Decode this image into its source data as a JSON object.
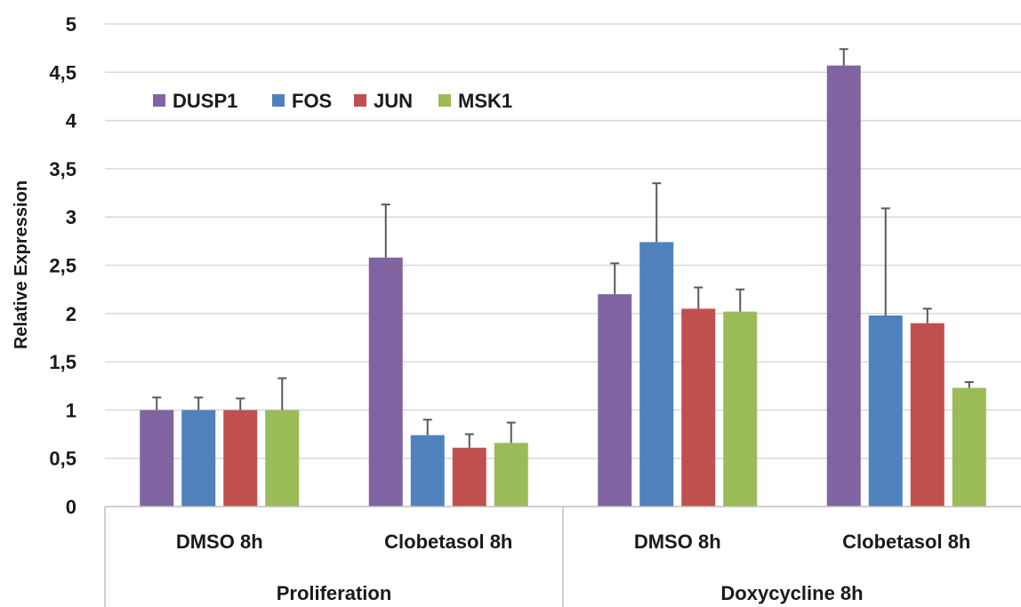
{
  "chart_data": {
    "type": "bar",
    "ylabel": "Relative Expression",
    "ylim": [
      0,
      5
    ],
    "yticks": [
      "0",
      "0,5",
      "1",
      "1,5",
      "2",
      "2,5",
      "3",
      "3,5",
      "4",
      "4,5",
      "5"
    ],
    "grid": true,
    "legend_position": "top-left",
    "groups": [
      "Proliferation",
      "Doxycycline 8h"
    ],
    "categories": [
      "DMSO 8h",
      "Clobetasol 8h",
      "DMSO 8h",
      "Clobetasol 8h"
    ],
    "series": [
      {
        "name": "DUSP1",
        "color": "#8064a2",
        "values": [
          1.0,
          2.58,
          2.2,
          4.57
        ],
        "error": [
          0.13,
          0.55,
          0.32,
          0.17
        ]
      },
      {
        "name": "FOS",
        "color": "#4f81bd",
        "values": [
          1.0,
          0.74,
          2.74,
          1.98
        ],
        "error": [
          0.13,
          0.16,
          0.61,
          1.11
        ]
      },
      {
        "name": "JUN",
        "color": "#c0504d",
        "values": [
          1.0,
          0.61,
          2.05,
          1.9
        ],
        "error": [
          0.12,
          0.14,
          0.22,
          0.15
        ]
      },
      {
        "name": "MSK1",
        "color": "#9bbb59",
        "values": [
          1.0,
          0.66,
          2.02,
          1.23
        ],
        "error": [
          0.33,
          0.21,
          0.23,
          0.06
        ]
      }
    ]
  }
}
